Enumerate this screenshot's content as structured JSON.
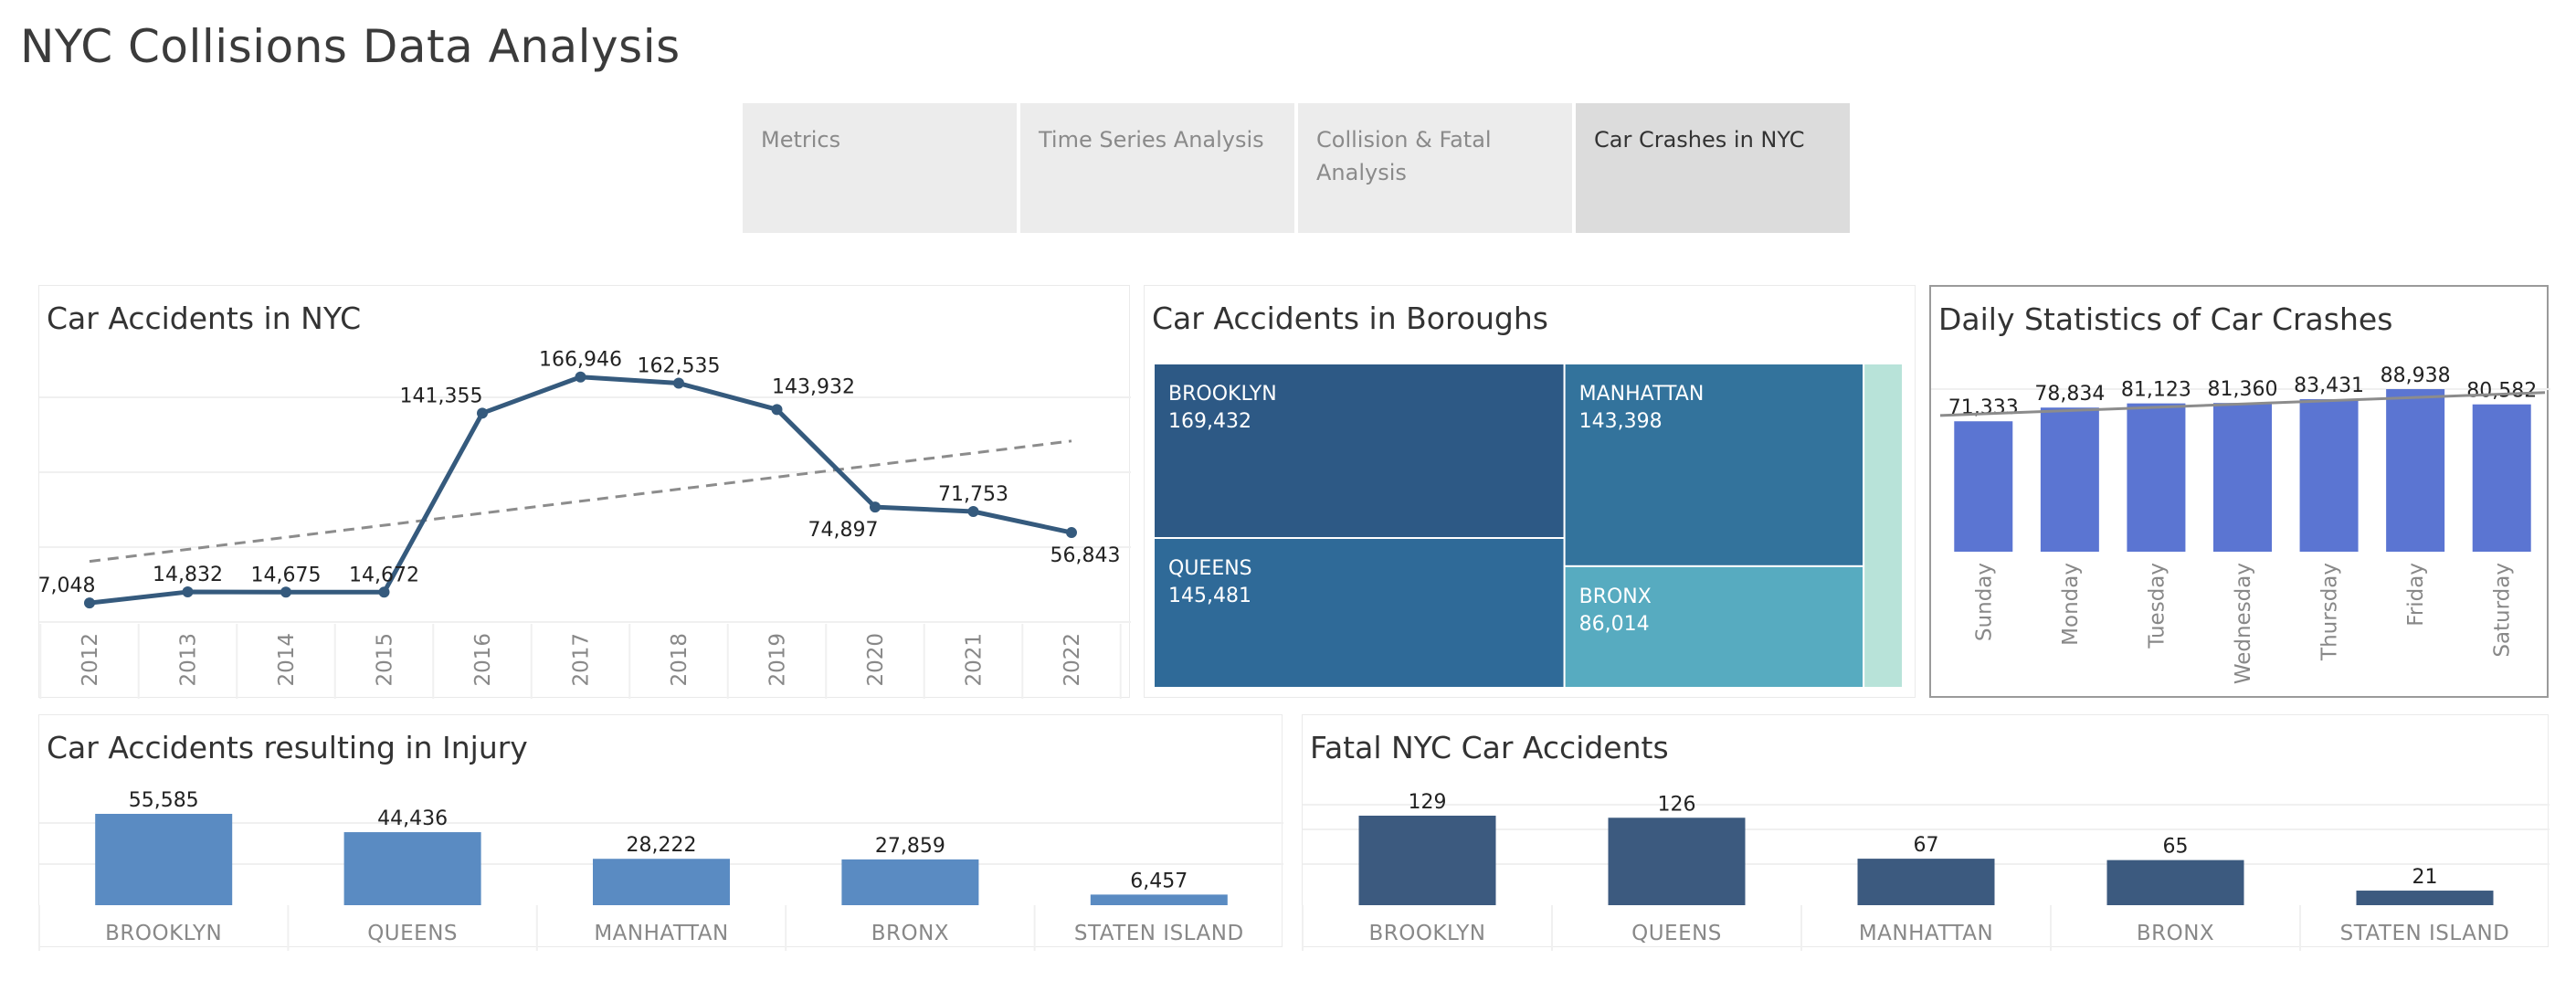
{
  "page": {
    "title": "NYC Collisions Data Analysis"
  },
  "tabs": [
    {
      "label": "Metrics",
      "active": false
    },
    {
      "label": "Time Series Analysis",
      "active": false
    },
    {
      "label": "Collision & Fatal\nAnalysis",
      "active": false
    },
    {
      "label": "Car Crashes in NYC",
      "active": true
    }
  ],
  "colors": {
    "line": "#355a7d",
    "trend": "#8c8c8c",
    "daily_bar": "#5b75d2",
    "injury_bar": "#5a8bc2",
    "fatal_bar": "#3c5a7f",
    "tree_brooklyn": "#2d5985",
    "tree_manhattan": "#33739c",
    "tree_queens": "#2f6a98",
    "tree_bronx": "#57abc0",
    "tree_staten": "#b8e3d9"
  },
  "chart_data": [
    {
      "id": "accidents_nyc",
      "type": "line",
      "title": "Car Accidents in NYC",
      "x": [
        "2012",
        "2013",
        "2014",
        "2015",
        "2016",
        "2017",
        "2018",
        "2019",
        "2020",
        "2021",
        "2022"
      ],
      "values": [
        7048,
        14832,
        14675,
        14672,
        141355,
        166946,
        162535,
        143932,
        74897,
        71753,
        56843
      ],
      "labels": [
        "7,048",
        "14,832",
        "14,675",
        "14,672",
        "141,355",
        "166,946",
        "162,535",
        "143,932",
        "74,897",
        "71,753",
        "56,843"
      ],
      "trend_line": true,
      "grid": true
    },
    {
      "id": "boroughs",
      "type": "treemap",
      "title": "Car Accidents in Boroughs",
      "items": [
        {
          "name": "BROOKLYN",
          "value": 169432,
          "label": "169,432"
        },
        {
          "name": "MANHATTAN",
          "value": 143398,
          "label": "143,398"
        },
        {
          "name": "QUEENS",
          "value": 145481,
          "label": "145,481"
        },
        {
          "name": "BRONX",
          "value": 86014,
          "label": "86,014"
        },
        {
          "name": "",
          "value": 30000,
          "label": ""
        }
      ]
    },
    {
      "id": "daily",
      "type": "bar",
      "title": "Daily Statistics of Car Crashes",
      "categories": [
        "Sunday",
        "Monday",
        "Tuesday",
        "Wednesday",
        "Thursday",
        "Friday",
        "Saturday"
      ],
      "values": [
        71333,
        78834,
        81123,
        81360,
        83431,
        88938,
        80582
      ],
      "labels": [
        "71,333",
        "78,834",
        "81,123",
        "81,360",
        "83,431",
        "88,938",
        "80,582"
      ],
      "trend_line": true
    },
    {
      "id": "injury",
      "type": "bar",
      "title": "Car Accidents resulting in Injury",
      "categories": [
        "BROOKLYN",
        "QUEENS",
        "MANHATTAN",
        "BRONX",
        "STATEN ISLAND"
      ],
      "values": [
        55585,
        44436,
        28222,
        27859,
        6457
      ],
      "labels": [
        "55,585",
        "44,436",
        "28,222",
        "27,859",
        "6,457"
      ]
    },
    {
      "id": "fatal",
      "type": "bar",
      "title": "Fatal NYC Car Accidents",
      "categories": [
        "BROOKLYN",
        "QUEENS",
        "MANHATTAN",
        "BRONX",
        "STATEN ISLAND"
      ],
      "values": [
        129,
        126,
        67,
        65,
        21
      ],
      "labels": [
        "129",
        "126",
        "67",
        "65",
        "21"
      ]
    }
  ]
}
